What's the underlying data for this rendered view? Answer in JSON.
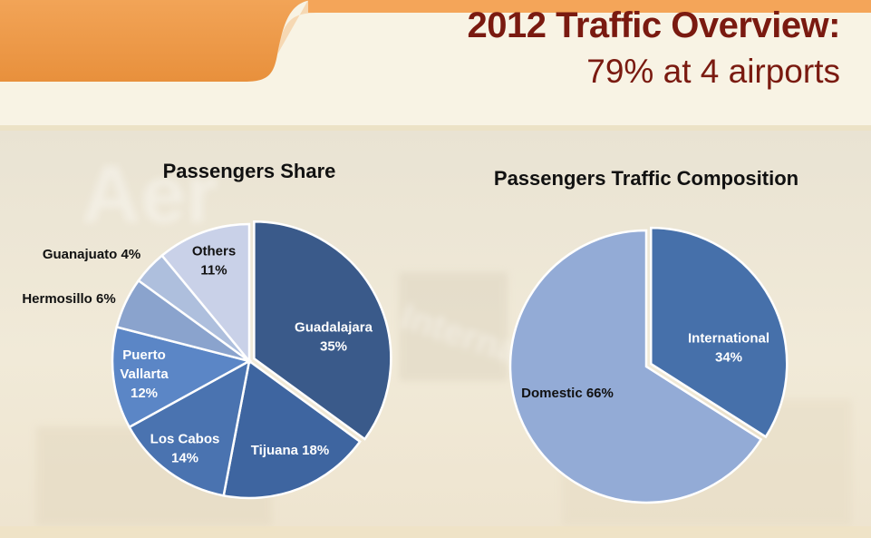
{
  "slide": {
    "title": "2012 Traffic Overview:",
    "subtitle": "79% at 4 airports",
    "colors": {
      "title": "#7a1a10",
      "orange_band": "#ef9a4a",
      "background": "#f7f1e2"
    }
  },
  "chart_data": [
    {
      "type": "pie",
      "title": "Passengers Share",
      "unit": "%",
      "slices": [
        {
          "label_lines": [
            "Guadalajara",
            "35%"
          ],
          "value": 35,
          "color": "#3a5a8a",
          "label_color": "#ffffff"
        },
        {
          "label_lines": [
            "Tijuana 18%"
          ],
          "value": 18,
          "color": "#3e65a0",
          "label_color": "#ffffff"
        },
        {
          "label_lines": [
            "Los Cabos",
            "14%"
          ],
          "value": 14,
          "color": "#4a73b0",
          "label_color": "#ffffff"
        },
        {
          "label_lines": [
            "Puerto",
            "Vallarta",
            "12%"
          ],
          "value": 12,
          "color": "#5b86c6",
          "label_color": "#ffffff"
        },
        {
          "label_lines": [
            "Hermosillo 6%"
          ],
          "value": 6,
          "color": "#8aa3cd",
          "label_color": "#111111"
        },
        {
          "label_lines": [
            "Guanajuato 4%"
          ],
          "value": 4,
          "color": "#aebfdd",
          "label_color": "#111111"
        },
        {
          "label_lines": [
            "Others",
            "11%"
          ],
          "value": 11,
          "color": "#c9d1e8",
          "label_color": "#111111"
        }
      ]
    },
    {
      "type": "pie",
      "title": "Passengers Traffic Composition",
      "unit": "%",
      "slices": [
        {
          "label_lines": [
            "International",
            "34%"
          ],
          "value": 34,
          "color": "#4670aa",
          "label_color": "#ffffff"
        },
        {
          "label_lines": [
            "Domestic 66%"
          ],
          "value": 66,
          "color": "#93abd6",
          "label_color": "#111111"
        }
      ]
    }
  ]
}
